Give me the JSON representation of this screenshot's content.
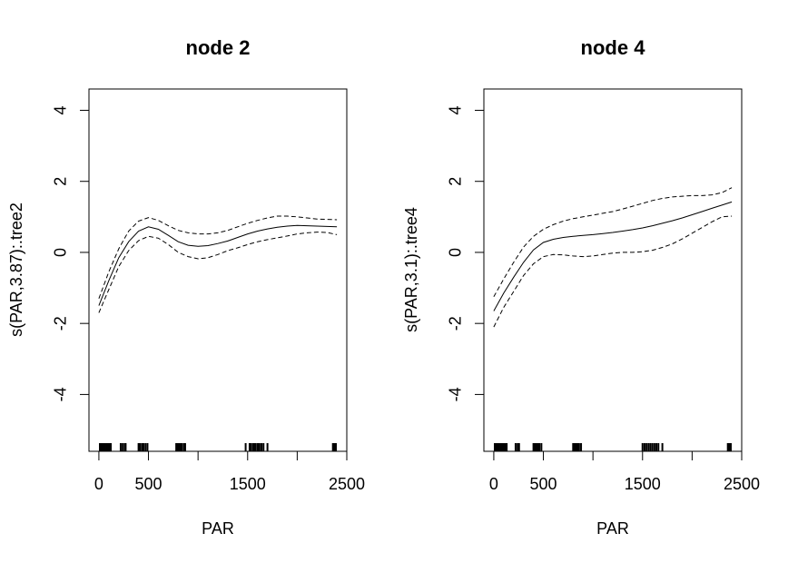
{
  "chart_data": [
    {
      "type": "line",
      "title": "node 2",
      "xlabel": "PAR",
      "ylabel": "s(PAR,3.87):.tree2",
      "xlim": [
        -100,
        2500
      ],
      "ylim": [
        -5.6,
        4.6
      ],
      "xticks": [
        0,
        500,
        1500,
        2500
      ],
      "xtick_labels": [
        "0",
        "500",
        "1500",
        "2500"
      ],
      "xticks_unlabeled": [
        1000,
        2000
      ],
      "yticks": [
        -4,
        -2,
        0,
        2,
        4
      ],
      "ytick_labels": [
        "-4",
        "-2",
        "0",
        "2",
        "4"
      ],
      "grid": false,
      "x": [
        0,
        100,
        200,
        300,
        400,
        500,
        600,
        700,
        800,
        900,
        1000,
        1100,
        1200,
        1300,
        1400,
        1500,
        1600,
        1700,
        1800,
        1900,
        2000,
        2100,
        2200,
        2300,
        2400
      ],
      "series": [
        {
          "line_style": "solid",
          "values": [
            -1.5,
            -0.8,
            -0.15,
            0.3,
            0.6,
            0.72,
            0.65,
            0.48,
            0.3,
            0.2,
            0.17,
            0.19,
            0.25,
            0.32,
            0.42,
            0.52,
            0.6,
            0.66,
            0.71,
            0.74,
            0.76,
            0.75,
            0.74,
            0.73,
            0.72
          ]
        },
        {
          "line_style": "dashed",
          "values": [
            -1.3,
            -0.55,
            0.1,
            0.6,
            0.88,
            0.98,
            0.9,
            0.75,
            0.62,
            0.55,
            0.52,
            0.52,
            0.55,
            0.62,
            0.72,
            0.82,
            0.9,
            0.97,
            1.02,
            1.02,
            1.0,
            0.97,
            0.94,
            0.93,
            0.92
          ]
        },
        {
          "line_style": "dashed",
          "values": [
            -1.7,
            -1.05,
            -0.4,
            0.05,
            0.33,
            0.45,
            0.4,
            0.22,
            0.0,
            -0.12,
            -0.18,
            -0.15,
            -0.06,
            0.05,
            0.13,
            0.22,
            0.3,
            0.36,
            0.41,
            0.46,
            0.52,
            0.55,
            0.57,
            0.56,
            0.5
          ]
        }
      ],
      "rug_x": [
        10,
        20,
        35,
        50,
        60,
        75,
        90,
        100,
        110,
        120,
        220,
        240,
        260,
        270,
        400,
        410,
        420,
        440,
        450,
        470,
        490,
        780,
        790,
        800,
        810,
        820,
        830,
        840,
        860,
        870,
        1480,
        1520,
        1530,
        1550,
        1560,
        1570,
        1580,
        1600,
        1610,
        1620,
        1640,
        1660,
        1700,
        2360,
        2370,
        2380,
        2390
      ]
    },
    {
      "type": "line",
      "title": "node 4",
      "xlabel": "PAR",
      "ylabel": "s(PAR,3.1):.tree4",
      "xlim": [
        -100,
        2500
      ],
      "ylim": [
        -5.6,
        4.6
      ],
      "xticks": [
        0,
        500,
        1500,
        2500
      ],
      "xtick_labels": [
        "0",
        "500",
        "1500",
        "2500"
      ],
      "xticks_unlabeled": [
        1000,
        2000
      ],
      "yticks": [
        -4,
        -2,
        0,
        2,
        4
      ],
      "ytick_labels": [
        "-4",
        "-2",
        "0",
        "2",
        "4"
      ],
      "grid": false,
      "x": [
        0,
        100,
        200,
        300,
        400,
        500,
        600,
        700,
        800,
        900,
        1000,
        1100,
        1200,
        1300,
        1400,
        1500,
        1600,
        1700,
        1800,
        1900,
        2000,
        2100,
        2200,
        2300,
        2400
      ],
      "series": [
        {
          "line_style": "solid",
          "values": [
            -1.65,
            -1.15,
            -0.7,
            -0.28,
            0.07,
            0.28,
            0.37,
            0.42,
            0.45,
            0.48,
            0.5,
            0.53,
            0.56,
            0.6,
            0.64,
            0.69,
            0.75,
            0.82,
            0.89,
            0.97,
            1.06,
            1.15,
            1.24,
            1.33,
            1.42
          ]
        },
        {
          "line_style": "dashed",
          "values": [
            -1.25,
            -0.75,
            -0.28,
            0.15,
            0.45,
            0.65,
            0.78,
            0.88,
            0.95,
            1.0,
            1.05,
            1.1,
            1.15,
            1.22,
            1.3,
            1.38,
            1.46,
            1.52,
            1.56,
            1.58,
            1.6,
            1.6,
            1.62,
            1.68,
            1.82
          ]
        },
        {
          "line_style": "dashed",
          "values": [
            -2.1,
            -1.55,
            -1.1,
            -0.65,
            -0.32,
            -0.12,
            -0.06,
            -0.07,
            -0.1,
            -0.12,
            -0.1,
            -0.06,
            -0.02,
            0.0,
            0.0,
            0.02,
            0.06,
            0.14,
            0.24,
            0.38,
            0.54,
            0.7,
            0.86,
            1.0,
            1.02
          ]
        }
      ],
      "rug_x": [
        10,
        25,
        40,
        55,
        70,
        85,
        100,
        115,
        130,
        220,
        240,
        255,
        400,
        415,
        430,
        445,
        460,
        480,
        800,
        810,
        820,
        830,
        840,
        850,
        860,
        880,
        1500,
        1520,
        1540,
        1560,
        1580,
        1600,
        1620,
        1640,
        1660,
        1700,
        2360,
        2370,
        2380,
        2390
      ]
    }
  ]
}
